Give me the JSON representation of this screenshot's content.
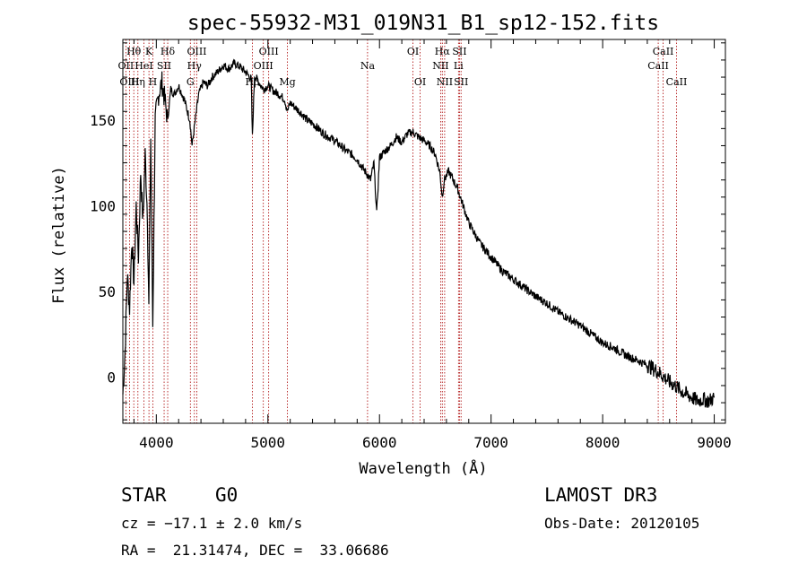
{
  "chart_data": {
    "type": "line",
    "title": "spec-55932-M31_019N31_B1_sp12-152.fits",
    "xlabel": "Wavelength (Å)",
    "ylabel": "Flux (relative)",
    "xlim": [
      3700,
      9100
    ],
    "ylim": [
      -27,
      197
    ],
    "xticks": [
      4000,
      5000,
      6000,
      7000,
      8000,
      9000
    ],
    "yticks": [
      0,
      50,
      100,
      150
    ],
    "grid": false,
    "legend": "none",
    "series": [
      {
        "name": "flux",
        "x": [
          3700,
          3720,
          3740,
          3760,
          3780,
          3800,
          3820,
          3840,
          3860,
          3880,
          3900,
          3920,
          3933,
          3950,
          3968,
          3990,
          4020,
          4050,
          4080,
          4101,
          4130,
          4160,
          4200,
          4250,
          4300,
          4320,
          4340,
          4380,
          4420,
          4460,
          4500,
          4550,
          4600,
          4650,
          4700,
          4750,
          4800,
          4850,
          4861,
          4880,
          4920,
          4960,
          5000,
          5050,
          5100,
          5150,
          5175,
          5200,
          5250,
          5300,
          5350,
          5400,
          5450,
          5500,
          5550,
          5600,
          5650,
          5700,
          5750,
          5800,
          5850,
          5893,
          5920,
          5950,
          5975,
          6000,
          6050,
          6100,
          6150,
          6200,
          6250,
          6300,
          6350,
          6400,
          6450,
          6500,
          6540,
          6563,
          6580,
          6620,
          6700,
          6800,
          6900,
          7000,
          7100,
          7200,
          7300,
          7400,
          7500,
          7600,
          7700,
          7800,
          7900,
          8000,
          8100,
          8200,
          8300,
          8400,
          8500,
          8550,
          8600,
          8650,
          8700,
          8750,
          8800,
          8850,
          8900,
          8950,
          9000
        ],
        "values": [
          -10,
          15,
          60,
          40,
          80,
          55,
          100,
          70,
          120,
          90,
          130,
          95,
          40,
          140,
          30,
          150,
          165,
          172,
          160,
          150,
          168,
          165,
          170,
          162,
          150,
          135,
          145,
          165,
          172,
          170,
          175,
          178,
          182,
          180,
          183,
          181,
          178,
          174,
          140,
          176,
          172,
          168,
          170,
          167,
          165,
          162,
          155,
          160,
          157,
          154,
          150,
          148,
          145,
          142,
          140,
          138,
          135,
          132,
          130,
          127,
          122,
          118,
          115,
          125,
          95,
          128,
          132,
          135,
          140,
          137,
          142,
          143,
          140,
          138,
          135,
          130,
          120,
          105,
          115,
          120,
          110,
          90,
          78,
          70,
          62,
          57,
          52,
          47,
          43,
          38,
          34,
          30,
          25,
          20,
          17,
          13,
          10,
          7,
          3,
          0,
          -3,
          -5,
          -8,
          -10,
          -12,
          -14,
          -13,
          -14,
          -12
        ]
      }
    ],
    "line_marks": [
      {
        "label": "Hθ",
        "x": 3798,
        "row": 1
      },
      {
        "label": "OII",
        "x": 3727,
        "row": 2
      },
      {
        "label": "OIII",
        "x": 3760,
        "row": 3
      },
      {
        "label": "Hη",
        "x": 3835,
        "row": 3
      },
      {
        "label": "HeI",
        "x": 3889,
        "row": 2
      },
      {
        "label": "K",
        "x": 3934,
        "row": 1
      },
      {
        "label": "H",
        "x": 3969,
        "row": 3
      },
      {
        "label": "SII",
        "x": 4070,
        "row": 2
      },
      {
        "label": "Hδ",
        "x": 4102,
        "row": 1
      },
      {
        "label": "OIII",
        "x": 4363,
        "row": 1
      },
      {
        "label": "Hγ",
        "x": 4341,
        "row": 2
      },
      {
        "label": "G",
        "x": 4305,
        "row": 3
      },
      {
        "label": "Hβ",
        "x": 4861,
        "row": 3
      },
      {
        "label": "OIII",
        "x": 5007,
        "row": 1
      },
      {
        "label": "OIII",
        "x": 4959,
        "row": 2
      },
      {
        "label": "Mg",
        "x": 5175,
        "row": 3
      },
      {
        "label": "Na",
        "x": 5893,
        "row": 2
      },
      {
        "label": "OI",
        "x": 6300,
        "row": 1
      },
      {
        "label": "OI",
        "x": 6364,
        "row": 3
      },
      {
        "label": "Hα",
        "x": 6563,
        "row": 1
      },
      {
        "label": "NII",
        "x": 6548,
        "row": 2
      },
      {
        "label": "NII",
        "x": 6584,
        "row": 3
      },
      {
        "label": "SII",
        "x": 6717,
        "row": 1
      },
      {
        "label": "Li",
        "x": 6708,
        "row": 2
      },
      {
        "label": "SII",
        "x": 6731,
        "row": 3
      },
      {
        "label": "CaII",
        "x": 8542,
        "row": 1
      },
      {
        "label": "CaII",
        "x": 8498,
        "row": 2
      },
      {
        "label": "CaII",
        "x": 8662,
        "row": 3
      }
    ]
  },
  "info": {
    "object_class": "STAR",
    "subclass": "G0",
    "survey": "LAMOST DR3",
    "cz": "cz = −17.1 ± 2.0 km/s",
    "obs_date": "Obs-Date: 20120105",
    "coords": "RA =  21.31474, DEC =  33.06686"
  },
  "colors": {
    "spectrum": "#000000",
    "line_marker": "#aa0000",
    "frame": "#000000"
  }
}
